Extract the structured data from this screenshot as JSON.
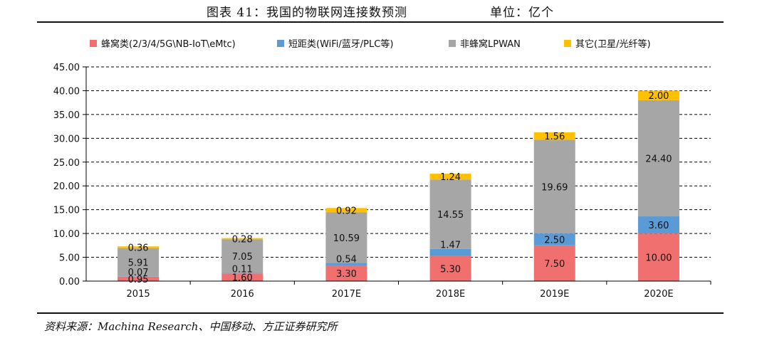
{
  "caption": {
    "title": "图表 41：我国的物联网连接数预测",
    "unit": "单位：亿个"
  },
  "source": "资料来源：Machina Research、中国移动、方正证券研究所",
  "colors": {
    "cellular": "#f07070",
    "short_range": "#5b9bd5",
    "non_cellular_lpwan": "#a6a6a6",
    "other": "#ffc000"
  },
  "chart_data": {
    "type": "bar",
    "stacked": true,
    "categories": [
      "2015",
      "2016",
      "2017E",
      "2018E",
      "2019E",
      "2020E"
    ],
    "series": [
      {
        "name": "蜂窝类(2/3/4/5G\\NB-IoT\\eMtc)",
        "color": "#f07070",
        "values": [
          0.95,
          1.6,
          3.3,
          5.3,
          7.5,
          10.0
        ],
        "labels": [
          "0.95",
          "1.60",
          "3.30",
          "5.30",
          "7.50",
          "10.00"
        ]
      },
      {
        "name": "短距类(WiFi/蓝牙/PLC等)",
        "color": "#5b9bd5",
        "values": [
          0.07,
          0.11,
          0.54,
          1.47,
          2.5,
          3.6
        ],
        "labels": [
          "0.07",
          "0.11",
          "0.54",
          "1.47",
          "2.50",
          "3.60"
        ]
      },
      {
        "name": "非蜂窝LPWAN",
        "color": "#a6a6a6",
        "values": [
          5.91,
          7.05,
          10.59,
          14.55,
          19.69,
          24.4
        ],
        "labels": [
          "5.91",
          "7.05",
          "10.59",
          "14.55",
          "19.69",
          "24.40"
        ]
      },
      {
        "name": "其它(卫星/光纤等)",
        "color": "#ffc000",
        "values": [
          0.36,
          0.28,
          0.92,
          1.24,
          1.56,
          2.0
        ],
        "labels": [
          "0.36",
          "0.28",
          "0.92",
          "1.24",
          "1.56",
          "2.00"
        ]
      }
    ],
    "ylim": [
      0,
      45
    ],
    "yticks": [
      "0.00",
      "5.00",
      "10.00",
      "15.00",
      "20.00",
      "25.00",
      "30.00",
      "35.00",
      "40.00",
      "45.00"
    ],
    "grid": "horizontal-dashed",
    "legend_position": "top"
  }
}
